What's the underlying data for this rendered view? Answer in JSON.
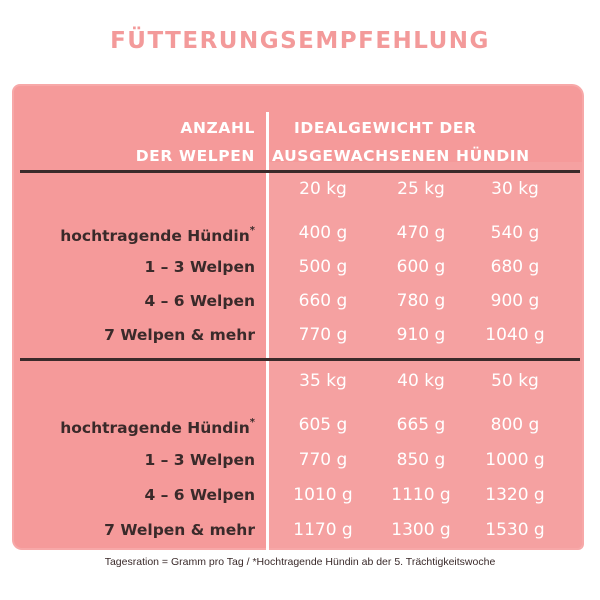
{
  "title": "FÜTTERUNGSEMPFEHLUNG",
  "header": {
    "left_line1": "ANZAHL",
    "left_line2": "DER WELPEN",
    "right_line1": "IDEALGEWICHT DER",
    "right_line2": "AUSGEWACHSENEN HÜNDIN"
  },
  "colors": {
    "title": "#f39a9a",
    "panel": "#f59a9a",
    "label_text": "#3a2a2a",
    "value_text": "#ffffff"
  },
  "sections": [
    {
      "weights": [
        "20 kg",
        "25 kg",
        "30 kg"
      ],
      "rows": [
        {
          "label": "hochtragende Hündin",
          "star": "*",
          "values": [
            "400 g",
            "470 g",
            "540 g"
          ]
        },
        {
          "label": "1 – 3 Welpen",
          "star": "",
          "values": [
            "500 g",
            "600 g",
            "680 g"
          ]
        },
        {
          "label": "4 – 6 Welpen",
          "star": "",
          "values": [
            "660 g",
            "780 g",
            "900 g"
          ]
        },
        {
          "label": "7 Welpen & mehr",
          "star": "",
          "values": [
            "770 g",
            "910 g",
            "1040 g"
          ]
        }
      ]
    },
    {
      "weights": [
        "35 kg",
        "40 kg",
        "50 kg"
      ],
      "rows": [
        {
          "label": "hochtragende Hündin",
          "star": "*",
          "values": [
            "605 g",
            "665 g",
            "800 g"
          ]
        },
        {
          "label": "1 – 3 Welpen",
          "star": "",
          "values": [
            "770 g",
            "850 g",
            "1000 g"
          ]
        },
        {
          "label": "4 – 6 Welpen",
          "star": "",
          "values": [
            "1010 g",
            "1110 g",
            "1320 g"
          ]
        },
        {
          "label": "7 Welpen & mehr",
          "star": "",
          "values": [
            "1170 g",
            "1300 g",
            "1530 g"
          ]
        }
      ]
    }
  ],
  "footer": "Tagesration = Gramm pro Tag / *Hochtragende Hündin ab der 5. Trächtigkeitswoche"
}
